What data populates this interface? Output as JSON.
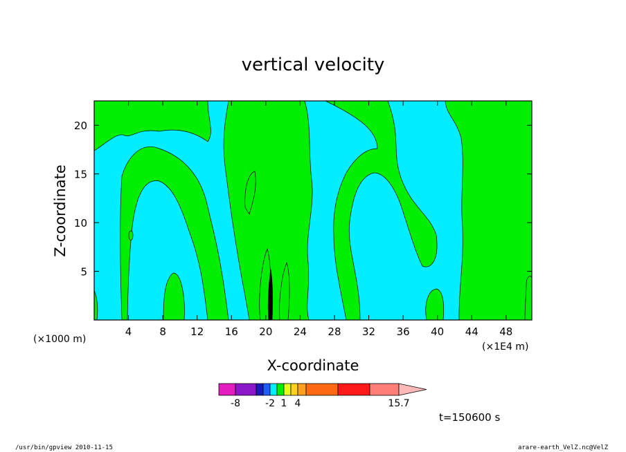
{
  "chart_data": {
    "type": "contour",
    "title": "vertical velocity",
    "xlabel": "X-coordinate",
    "ylabel": "Z-coordinate",
    "x_unit_left": "(×1000 m)",
    "x_unit_right": "(×1E4 m)",
    "x_ticks": [
      4,
      8,
      12,
      16,
      20,
      24,
      28,
      32,
      36,
      40,
      44,
      48
    ],
    "y_ticks": [
      5,
      10,
      15,
      20
    ],
    "xlim": [
      0,
      51
    ],
    "ylim": [
      0,
      22.5
    ],
    "background_level_color": "#00eeff",
    "positive_level_color": "#00ee00",
    "colorbar": {
      "colors": [
        "#e21ec0",
        "#8a18c8",
        "#1a1ab8",
        "#1f5cff",
        "#00eeff",
        "#00ee00",
        "#e6ff1e",
        "#ffd21e",
        "#ffa01e",
        "#ff6a12",
        "#ff1a1a",
        "#ff7e78",
        "#ffb8b8"
      ],
      "labels": [
        {
          "text": "-8",
          "index": 1
        },
        {
          "text": "-2",
          "index": 4
        },
        {
          "text": "1",
          "index": 6
        },
        {
          "text": "4",
          "index": 8
        },
        {
          "text": "15.7",
          "index": 12
        }
      ]
    },
    "time_label": "t=150600 s"
  },
  "footer": {
    "left": "/usr/bin/gpview   2010-11-15",
    "right": "arare-earth_VelZ.nc@VelZ"
  }
}
